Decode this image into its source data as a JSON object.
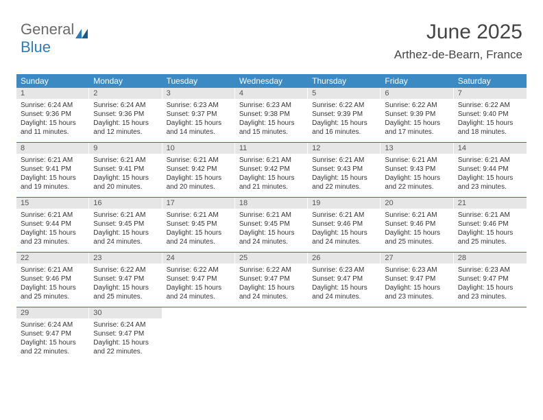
{
  "logo": {
    "word1": "General",
    "word2": "Blue"
  },
  "header": {
    "title": "June 2025",
    "location": "Arthez-de-Bearn, France"
  },
  "colors": {
    "header_bg": "#3b8ac4",
    "header_text": "#ffffff",
    "daynum_bg": "#e6e6e6",
    "row_border": "#3b6a9a",
    "text": "#333333",
    "logo_gray": "#6a6a6a",
    "logo_blue": "#2a7db8"
  },
  "dow": [
    "Sunday",
    "Monday",
    "Tuesday",
    "Wednesday",
    "Thursday",
    "Friday",
    "Saturday"
  ],
  "days": [
    {
      "n": "1",
      "sr": "6:24 AM",
      "ss": "9:36 PM",
      "d": "15 hours and 11 minutes."
    },
    {
      "n": "2",
      "sr": "6:24 AM",
      "ss": "9:36 PM",
      "d": "15 hours and 12 minutes."
    },
    {
      "n": "3",
      "sr": "6:23 AM",
      "ss": "9:37 PM",
      "d": "15 hours and 14 minutes."
    },
    {
      "n": "4",
      "sr": "6:23 AM",
      "ss": "9:38 PM",
      "d": "15 hours and 15 minutes."
    },
    {
      "n": "5",
      "sr": "6:22 AM",
      "ss": "9:39 PM",
      "d": "15 hours and 16 minutes."
    },
    {
      "n": "6",
      "sr": "6:22 AM",
      "ss": "9:39 PM",
      "d": "15 hours and 17 minutes."
    },
    {
      "n": "7",
      "sr": "6:22 AM",
      "ss": "9:40 PM",
      "d": "15 hours and 18 minutes."
    },
    {
      "n": "8",
      "sr": "6:21 AM",
      "ss": "9:41 PM",
      "d": "15 hours and 19 minutes."
    },
    {
      "n": "9",
      "sr": "6:21 AM",
      "ss": "9:41 PM",
      "d": "15 hours and 20 minutes."
    },
    {
      "n": "10",
      "sr": "6:21 AM",
      "ss": "9:42 PM",
      "d": "15 hours and 20 minutes."
    },
    {
      "n": "11",
      "sr": "6:21 AM",
      "ss": "9:42 PM",
      "d": "15 hours and 21 minutes."
    },
    {
      "n": "12",
      "sr": "6:21 AM",
      "ss": "9:43 PM",
      "d": "15 hours and 22 minutes."
    },
    {
      "n": "13",
      "sr": "6:21 AM",
      "ss": "9:43 PM",
      "d": "15 hours and 22 minutes."
    },
    {
      "n": "14",
      "sr": "6:21 AM",
      "ss": "9:44 PM",
      "d": "15 hours and 23 minutes."
    },
    {
      "n": "15",
      "sr": "6:21 AM",
      "ss": "9:44 PM",
      "d": "15 hours and 23 minutes."
    },
    {
      "n": "16",
      "sr": "6:21 AM",
      "ss": "9:45 PM",
      "d": "15 hours and 24 minutes."
    },
    {
      "n": "17",
      "sr": "6:21 AM",
      "ss": "9:45 PM",
      "d": "15 hours and 24 minutes."
    },
    {
      "n": "18",
      "sr": "6:21 AM",
      "ss": "9:45 PM",
      "d": "15 hours and 24 minutes."
    },
    {
      "n": "19",
      "sr": "6:21 AM",
      "ss": "9:46 PM",
      "d": "15 hours and 24 minutes."
    },
    {
      "n": "20",
      "sr": "6:21 AM",
      "ss": "9:46 PM",
      "d": "15 hours and 25 minutes."
    },
    {
      "n": "21",
      "sr": "6:21 AM",
      "ss": "9:46 PM",
      "d": "15 hours and 25 minutes."
    },
    {
      "n": "22",
      "sr": "6:21 AM",
      "ss": "9:46 PM",
      "d": "15 hours and 25 minutes."
    },
    {
      "n": "23",
      "sr": "6:22 AM",
      "ss": "9:47 PM",
      "d": "15 hours and 25 minutes."
    },
    {
      "n": "24",
      "sr": "6:22 AM",
      "ss": "9:47 PM",
      "d": "15 hours and 24 minutes."
    },
    {
      "n": "25",
      "sr": "6:22 AM",
      "ss": "9:47 PM",
      "d": "15 hours and 24 minutes."
    },
    {
      "n": "26",
      "sr": "6:23 AM",
      "ss": "9:47 PM",
      "d": "15 hours and 24 minutes."
    },
    {
      "n": "27",
      "sr": "6:23 AM",
      "ss": "9:47 PM",
      "d": "15 hours and 23 minutes."
    },
    {
      "n": "28",
      "sr": "6:23 AM",
      "ss": "9:47 PM",
      "d": "15 hours and 23 minutes."
    },
    {
      "n": "29",
      "sr": "6:24 AM",
      "ss": "9:47 PM",
      "d": "15 hours and 22 minutes."
    },
    {
      "n": "30",
      "sr": "6:24 AM",
      "ss": "9:47 PM",
      "d": "15 hours and 22 minutes."
    }
  ],
  "labels": {
    "sunrise": "Sunrise:",
    "sunset": "Sunset:",
    "daylight": "Daylight:"
  }
}
